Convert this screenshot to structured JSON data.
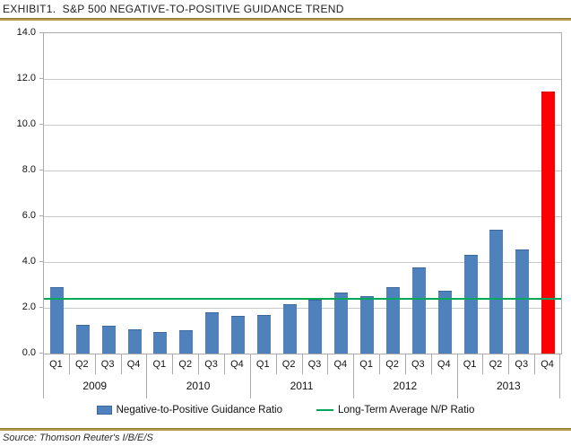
{
  "header": {
    "title": "EXHIBIT1.  S&P 500 NEGATIVE-TO-POSITIVE GUIDANCE TREND"
  },
  "footer": {
    "source": "Source: Thomson Reuter's I/B/E/S"
  },
  "legend": {
    "items": [
      {
        "label": "Negative-to-Positive Guidance Ratio",
        "swatch": "bar"
      },
      {
        "label": "Long-Term Average N/P Ratio",
        "swatch": "line"
      }
    ]
  },
  "colors": {
    "bar": "#4f81bd",
    "bar_border": "#3c689c",
    "highlight_bar": "#fe0000",
    "highlight_border": "#d40000",
    "average_line": "#00a859",
    "gridline": "#c9c9c9",
    "axis": "#ababab",
    "title_rule": "#b59b4c",
    "text": "#111111"
  },
  "chart_data": {
    "type": "bar",
    "title": "S&P 500 Negative-to-Positive Guidance Trend",
    "xlabel": "",
    "ylabel": "",
    "ylim": [
      0,
      14
    ],
    "ytick_step": 2.0,
    "ytick_labels": [
      "14.0",
      "12.0",
      "10.0",
      "8.0",
      "6.0",
      "4.0",
      "2.0",
      "0.0"
    ],
    "grid": true,
    "legend_position": "bottom",
    "groups": [
      {
        "year": "2009",
        "quarters": [
          "Q1",
          "Q2",
          "Q3",
          "Q4"
        ],
        "values": [
          2.9,
          1.25,
          1.2,
          1.05
        ]
      },
      {
        "year": "2010",
        "quarters": [
          "Q1",
          "Q2",
          "Q3",
          "Q4"
        ],
        "values": [
          0.95,
          1.0,
          1.8,
          1.65
        ]
      },
      {
        "year": "2011",
        "quarters": [
          "Q1",
          "Q2",
          "Q3",
          "Q4"
        ],
        "values": [
          1.7,
          2.15,
          2.35,
          2.65
        ]
      },
      {
        "year": "2012",
        "quarters": [
          "Q1",
          "Q2",
          "Q3",
          "Q4"
        ],
        "values": [
          2.5,
          2.9,
          3.75,
          2.75
        ]
      },
      {
        "year": "2013",
        "quarters": [
          "Q1",
          "Q2",
          "Q3",
          "Q4"
        ],
        "values": [
          4.3,
          5.4,
          4.55,
          11.45
        ]
      }
    ],
    "series": [
      {
        "name": "Negative-to-Positive Guidance Ratio",
        "type": "bar",
        "values": [
          2.9,
          1.25,
          1.2,
          1.05,
          0.95,
          1.0,
          1.8,
          1.65,
          1.7,
          2.15,
          2.35,
          2.65,
          2.5,
          2.9,
          3.75,
          2.75,
          4.3,
          5.4,
          4.55,
          11.45
        ]
      },
      {
        "name": "Long-Term Average N/P Ratio",
        "type": "line",
        "value": 2.4
      }
    ],
    "highlight": {
      "index": 19,
      "label": "Q4 2013"
    }
  }
}
